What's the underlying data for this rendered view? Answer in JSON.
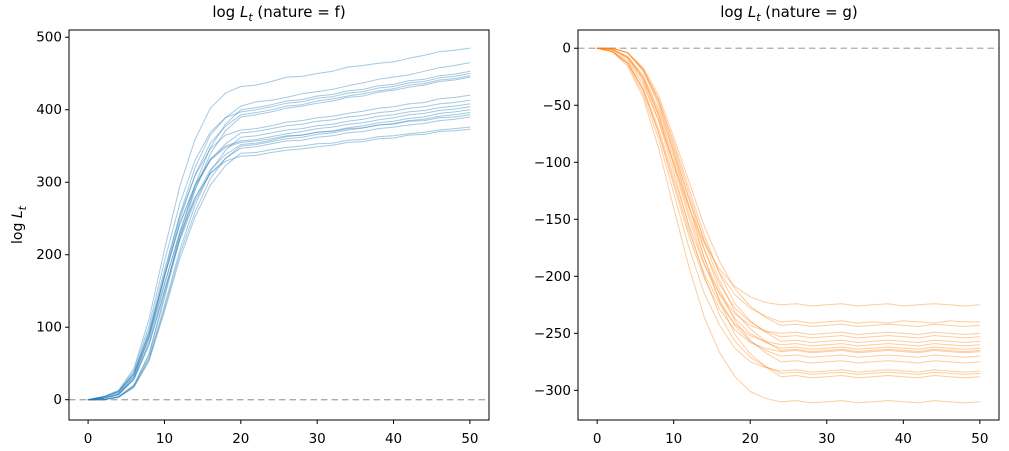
{
  "figure": {
    "background": "#ffffff",
    "left_plot": {
      "title_prefix": "log ",
      "title_var": "L",
      "title_sub": "t",
      "title_rest": " (nature = f)"
    },
    "right_plot": {
      "title_prefix": "log ",
      "title_var": "L",
      "title_sub": "t",
      "title_rest": " (nature = g)"
    },
    "ylabel_parts": {
      "prefix": "log ",
      "var": "L",
      "sub": "t"
    }
  },
  "chart_data": [
    {
      "type": "line",
      "title": "log L_t (nature = f)",
      "xlabel": "",
      "ylabel": "log L_t",
      "color": "#1f77b4",
      "line_alpha": 0.4,
      "line_width": 1,
      "grid": false,
      "legend_position": "none",
      "xlim": [
        -2.5,
        52.5
      ],
      "ylim": [
        -28,
        510
      ],
      "xticks": [
        0,
        10,
        20,
        30,
        40,
        50
      ],
      "xtick_labels": [
        "0",
        "10",
        "20",
        "30",
        "40",
        "50"
      ],
      "yticks": [
        0,
        100,
        200,
        300,
        400,
        500
      ],
      "ytick_labels": [
        "0",
        "100",
        "200",
        "300",
        "400",
        "500"
      ],
      "hline": {
        "y": 0,
        "style": "dashed",
        "color": "#ababab"
      },
      "x": [
        0,
        2,
        4,
        6,
        8,
        10,
        12,
        14,
        16,
        18,
        20,
        22,
        24,
        26,
        28,
        30,
        32,
        34,
        36,
        38,
        40,
        42,
        44,
        46,
        48,
        50
      ],
      "series": [
        [
          0,
          4,
          13,
          43,
          112,
          207,
          294,
          359,
          402,
          423,
          432,
          434,
          439,
          445,
          446,
          450,
          453,
          459,
          461,
          464,
          466,
          471,
          475,
          480,
          482,
          485
        ],
        [
          0,
          2,
          8,
          32,
          89,
          174,
          255,
          320,
          365,
          389,
          405,
          411,
          413,
          417,
          422,
          425,
          428,
          433,
          437,
          442,
          445,
          448,
          453,
          458,
          461,
          465
        ],
        [
          0,
          0,
          4,
          20,
          64,
          144,
          228,
          296,
          348,
          380,
          400,
          403,
          407,
          412,
          414,
          419,
          421,
          426,
          428,
          433,
          435,
          440,
          442,
          447,
          449,
          453
        ],
        [
          0,
          4,
          12,
          40,
          103,
          191,
          270,
          330,
          369,
          389,
          397,
          400,
          404,
          409,
          411,
          416,
          418,
          423,
          425,
          430,
          432,
          437,
          439,
          444,
          446,
          450
        ],
        [
          0,
          2,
          8,
          31,
          86,
          169,
          248,
          310,
          354,
          377,
          393,
          396,
          400,
          405,
          407,
          412,
          415,
          419,
          422,
          426,
          429,
          434,
          436,
          441,
          443,
          447
        ],
        [
          0,
          0,
          4,
          20,
          62,
          140,
          222,
          289,
          339,
          371,
          390,
          393,
          397,
          402,
          405,
          409,
          412,
          417,
          419,
          424,
          427,
          431,
          434,
          439,
          441,
          445
        ],
        [
          0,
          4,
          11,
          37,
          97,
          179,
          253,
          309,
          346,
          365,
          372,
          374,
          378,
          383,
          385,
          389,
          391,
          395,
          398,
          402,
          404,
          408,
          410,
          415,
          417,
          420
        ],
        [
          0,
          2,
          7,
          29,
          81,
          158,
          232,
          291,
          331,
          353,
          368,
          370,
          374,
          378,
          380,
          384,
          386,
          390,
          392,
          396,
          398,
          402,
          404,
          408,
          410,
          413
        ],
        [
          0,
          0,
          4,
          18,
          58,
          130,
          206,
          268,
          315,
          344,
          362,
          364,
          368,
          372,
          374,
          378,
          380,
          384,
          387,
          391,
          393,
          397,
          399,
          403,
          405,
          408
        ],
        [
          0,
          4,
          11,
          36,
          93,
          171,
          243,
          296,
          332,
          350,
          357,
          359,
          363,
          367,
          370,
          374,
          376,
          380,
          382,
          386,
          389,
          393,
          395,
          399,
          401,
          404
        ],
        [
          0,
          2,
          7,
          28,
          77,
          151,
          222,
          278,
          317,
          338,
          352,
          354,
          358,
          363,
          365,
          369,
          371,
          375,
          378,
          382,
          384,
          388,
          390,
          395,
          397,
          400
        ],
        [
          0,
          0,
          4,
          18,
          56,
          126,
          200,
          259,
          305,
          333,
          350,
          352,
          356,
          360,
          362,
          366,
          368,
          372,
          375,
          379,
          381,
          385,
          387,
          391,
          393,
          396
        ],
        [
          0,
          4,
          11,
          36,
          92,
          170,
          241,
          295,
          330,
          348,
          355,
          357,
          360,
          364,
          365,
          369,
          370,
          374,
          375,
          379,
          380,
          384,
          385,
          389,
          390,
          393
        ],
        [
          0,
          2,
          7,
          28,
          76,
          149,
          219,
          274,
          312,
          333,
          347,
          349,
          353,
          357,
          358,
          362,
          364,
          368,
          370,
          374,
          376,
          379,
          381,
          385,
          387,
          390
        ],
        [
          0,
          0,
          3,
          17,
          54,
          122,
          194,
          252,
          296,
          323,
          340,
          341,
          345,
          348,
          350,
          353,
          354,
          358,
          359,
          363,
          364,
          367,
          369,
          372,
          374,
          376
        ],
        [
          0,
          3,
          10,
          34,
          87,
          161,
          228,
          279,
          312,
          329,
          336,
          337,
          341,
          344,
          346,
          349,
          351,
          355,
          356,
          360,
          361,
          365,
          366,
          370,
          371,
          373
        ]
      ]
    },
    {
      "type": "line",
      "title": "log L_t (nature = g)",
      "xlabel": "",
      "ylabel": "",
      "color": "#ff7f0e",
      "line_alpha": 0.4,
      "line_width": 1,
      "grid": false,
      "legend_position": "none",
      "xlim": [
        -2.5,
        52.5
      ],
      "ylim": [
        -326,
        16
      ],
      "xticks": [
        0,
        10,
        20,
        30,
        40,
        50
      ],
      "xtick_labels": [
        "0",
        "10",
        "20",
        "30",
        "40",
        "50"
      ],
      "yticks": [
        0,
        -50,
        -100,
        -150,
        -200,
        -250,
        -300
      ],
      "ytick_labels": [
        "0",
        "−50",
        "−100",
        "−150",
        "−200",
        "−250",
        "−300"
      ],
      "hline": {
        "y": 0,
        "style": "dashed",
        "color": "#ababab"
      },
      "x": [
        0,
        2,
        4,
        6,
        8,
        10,
        12,
        14,
        16,
        18,
        20,
        22,
        24,
        26,
        28,
        30,
        32,
        34,
        36,
        38,
        40,
        42,
        44,
        46,
        48,
        50
      ],
      "series": [
        [
          0,
          -2,
          -11,
          -32,
          -63,
          -101,
          -140,
          -171,
          -194,
          -209,
          -218,
          -223,
          -225,
          -224,
          -226,
          -225,
          -224,
          -226,
          -225,
          -224,
          -226,
          -225,
          -224,
          -225,
          -226,
          -225
        ],
        [
          0,
          -1,
          -7,
          -24,
          -53,
          -91,
          -132,
          -168,
          -197,
          -216,
          -228,
          -235,
          -240,
          -239,
          -241,
          -240,
          -239,
          -241,
          -240,
          -241,
          -239,
          -240,
          -241,
          -239,
          -240,
          -240
        ],
        [
          0,
          0,
          -4,
          -17,
          -41,
          -78,
          -117,
          -156,
          -187,
          -211,
          -226,
          -236,
          -243,
          -242,
          -244,
          -243,
          -242,
          -244,
          -243,
          -242,
          -243,
          -244,
          -242,
          -243,
          -244,
          -243
        ],
        [
          0,
          -3,
          -13,
          -35,
          -70,
          -113,
          -155,
          -190,
          -215,
          -233,
          -243,
          -248,
          -250,
          -249,
          -251,
          -250,
          -249,
          -251,
          -250,
          -249,
          -250,
          -251,
          -249,
          -250,
          -251,
          -250
        ],
        [
          0,
          -1,
          -8,
          -25,
          -56,
          -96,
          -139,
          -177,
          -207,
          -228,
          -240,
          -248,
          -253,
          -252,
          -254,
          -253,
          -252,
          -254,
          -253,
          -252,
          -253,
          -254,
          -252,
          -253,
          -254,
          -253
        ],
        [
          0,
          0,
          -4,
          -18,
          -44,
          -82,
          -123,
          -164,
          -198,
          -224,
          -239,
          -249,
          -257,
          -256,
          -258,
          -257,
          -256,
          -258,
          -257,
          -256,
          -257,
          -258,
          -256,
          -257,
          -258,
          -257
        ],
        [
          0,
          -3,
          -13,
          -36,
          -73,
          -117,
          -161,
          -198,
          -224,
          -242,
          -252,
          -257,
          -260,
          -259,
          -261,
          -260,
          -259,
          -261,
          -260,
          -259,
          -260,
          -261,
          -259,
          -260,
          -261,
          -260
        ],
        [
          0,
          -1,
          -8,
          -26,
          -58,
          -100,
          -145,
          -184,
          -216,
          -237,
          -250,
          -258,
          -263,
          -262,
          -264,
          -263,
          -262,
          -264,
          -263,
          -262,
          -263,
          -264,
          -262,
          -263,
          -264,
          -263
        ],
        [
          0,
          0,
          -4,
          -19,
          -45,
          -85,
          -127,
          -170,
          -204,
          -231,
          -246,
          -257,
          -265,
          -264,
          -266,
          -265,
          -264,
          -266,
          -265,
          -264,
          -265,
          -266,
          -264,
          -265,
          -266,
          -265
        ],
        [
          0,
          -3,
          -13,
          -37,
          -74,
          -120,
          -165,
          -202,
          -229,
          -247,
          -258,
          -263,
          -266,
          -265,
          -267,
          -266,
          -265,
          -267,
          -266,
          -265,
          -266,
          -267,
          -265,
          -266,
          -267,
          -266
        ],
        [
          0,
          -1,
          -8,
          -27,
          -59,
          -103,
          -149,
          -189,
          -221,
          -243,
          -257,
          -265,
          -270,
          -269,
          -271,
          -270,
          -269,
          -271,
          -270,
          -269,
          -270,
          -271,
          -269,
          -270,
          -271,
          -270
        ],
        [
          0,
          0,
          -4,
          -19,
          -47,
          -88,
          -132,
          -176,
          -212,
          -239,
          -256,
          -267,
          -275,
          -274,
          -276,
          -275,
          -274,
          -276,
          -275,
          -274,
          -275,
          -276,
          -274,
          -275,
          -276,
          -275
        ],
        [
          0,
          -3,
          -14,
          -40,
          -79,
          -127,
          -175,
          -215,
          -243,
          -263,
          -275,
          -280,
          -283,
          -282,
          -284,
          -283,
          -282,
          -284,
          -283,
          -282,
          -283,
          -284,
          -282,
          -283,
          -284,
          -283
        ],
        [
          0,
          -1,
          -9,
          -29,
          -63,
          -108,
          -157,
          -200,
          -234,
          -257,
          -271,
          -279,
          -285,
          -284,
          -286,
          -285,
          -284,
          -286,
          -285,
          -284,
          -285,
          -286,
          -284,
          -285,
          -286,
          -285
        ],
        [
          0,
          0,
          -4,
          -20,
          -49,
          -92,
          -138,
          -184,
          -222,
          -251,
          -268,
          -279,
          -288,
          -287,
          -289,
          -288,
          -287,
          -289,
          -288,
          -287,
          -288,
          -289,
          -287,
          -288,
          -289,
          -288
        ],
        [
          0,
          -3,
          -16,
          -43,
          -87,
          -140,
          -192,
          -236,
          -267,
          -288,
          -301,
          -307,
          -310,
          -309,
          -311,
          -310,
          -309,
          -311,
          -310,
          -309,
          -310,
          -311,
          -309,
          -310,
          -311,
          -310
        ]
      ]
    }
  ]
}
